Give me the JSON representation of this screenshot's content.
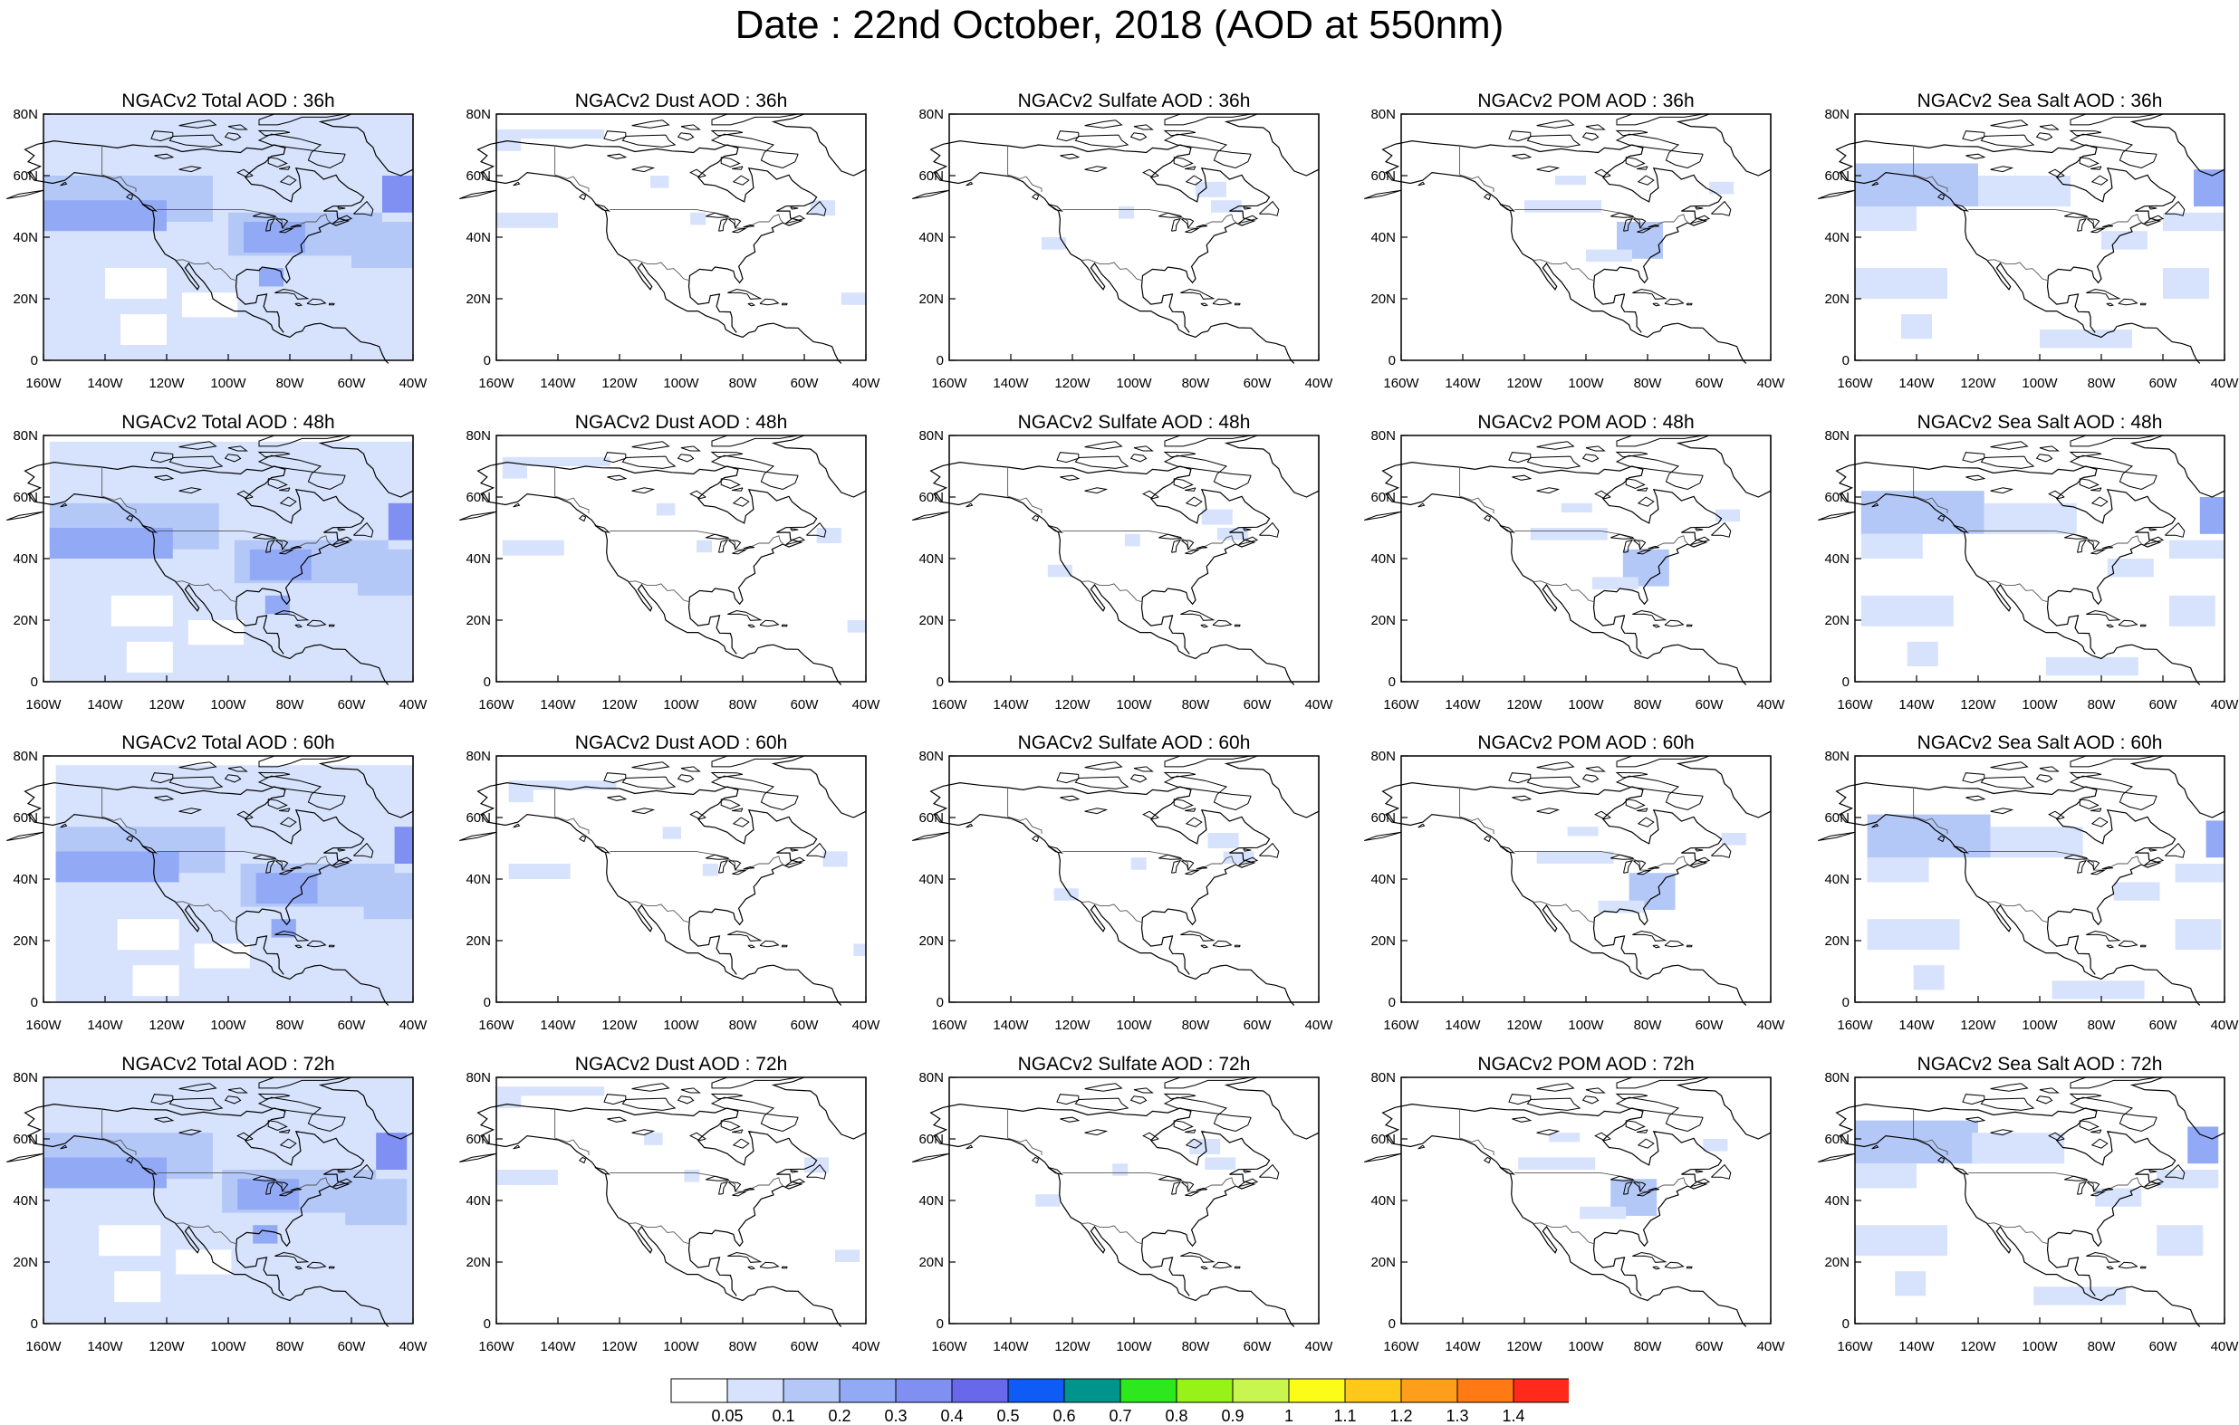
{
  "title": "Date : 22nd October, 2018 (AOD at 550nm)",
  "lat_labels": [
    "80N",
    "60N",
    "40N",
    "20N",
    "0"
  ],
  "lon_labels": [
    "160W",
    "140W",
    "120W",
    "100W",
    "80W",
    "60W",
    "40W"
  ],
  "species": [
    "Total",
    "Dust",
    "Sulfate",
    "POM",
    "Sea Salt"
  ],
  "panels": [
    {
      "title": "NGACv2 Total AOD : 36h",
      "species": "Total",
      "hour": "36h"
    },
    {
      "title": "NGACv2 Dust AOD : 36h",
      "species": "Dust",
      "hour": "36h"
    },
    {
      "title": "NGACv2 Sulfate AOD : 36h",
      "species": "Sulfate",
      "hour": "36h"
    },
    {
      "title": "NGACv2 POM AOD : 36h",
      "species": "POM",
      "hour": "36h"
    },
    {
      "title": "NGACv2 Sea Salt AOD : 36h",
      "species": "Sea Salt",
      "hour": "36h"
    },
    {
      "title": "NGACv2 Total AOD : 48h",
      "species": "Total",
      "hour": "48h"
    },
    {
      "title": "NGACv2 Dust AOD : 48h",
      "species": "Dust",
      "hour": "48h"
    },
    {
      "title": "NGACv2 Sulfate AOD : 48h",
      "species": "Sulfate",
      "hour": "48h"
    },
    {
      "title": "NGACv2 POM AOD : 48h",
      "species": "POM",
      "hour": "48h"
    },
    {
      "title": "NGACv2 Sea Salt AOD : 48h",
      "species": "Sea Salt",
      "hour": "48h"
    },
    {
      "title": "NGACv2 Total AOD : 60h",
      "species": "Total",
      "hour": "60h"
    },
    {
      "title": "NGACv2 Dust AOD : 60h",
      "species": "Dust",
      "hour": "60h"
    },
    {
      "title": "NGACv2 Sulfate AOD : 60h",
      "species": "Sulfate",
      "hour": "60h"
    },
    {
      "title": "NGACv2 POM AOD : 60h",
      "species": "POM",
      "hour": "60h"
    },
    {
      "title": "NGACv2 Sea Salt AOD : 60h",
      "species": "Sea Salt",
      "hour": "60h"
    },
    {
      "title": "NGACv2 Total AOD : 72h",
      "species": "Total",
      "hour": "72h"
    },
    {
      "title": "NGACv2 Dust AOD : 72h",
      "species": "Dust",
      "hour": "72h"
    },
    {
      "title": "NGACv2 Sulfate AOD : 72h",
      "species": "Sulfate",
      "hour": "72h"
    },
    {
      "title": "NGACv2 POM AOD : 72h",
      "species": "POM",
      "hour": "72h"
    },
    {
      "title": "NGACv2 Sea Salt  AOD : 72h",
      "species": "Sea Salt",
      "hour": "72h"
    }
  ],
  "colorbar": {
    "colors": [
      "#ffffff",
      "#d7e3fc",
      "#b4c8f8",
      "#92a9f5",
      "#7f8ff2",
      "#6868ea",
      "#0f5bf5",
      "#00948c",
      "#2ce81c",
      "#97f21a",
      "#c8f550",
      "#fcfc19",
      "#ffc81a",
      "#ff9e1a",
      "#ff7a14",
      "#ff2a1a"
    ],
    "labels": [
      "0.05",
      "0.1",
      "0.2",
      "0.3",
      "0.4",
      "0.5",
      "0.6",
      "0.7",
      "0.8",
      "0.9",
      "1",
      "1.1",
      "1.2",
      "1.3",
      "1.4"
    ]
  }
}
